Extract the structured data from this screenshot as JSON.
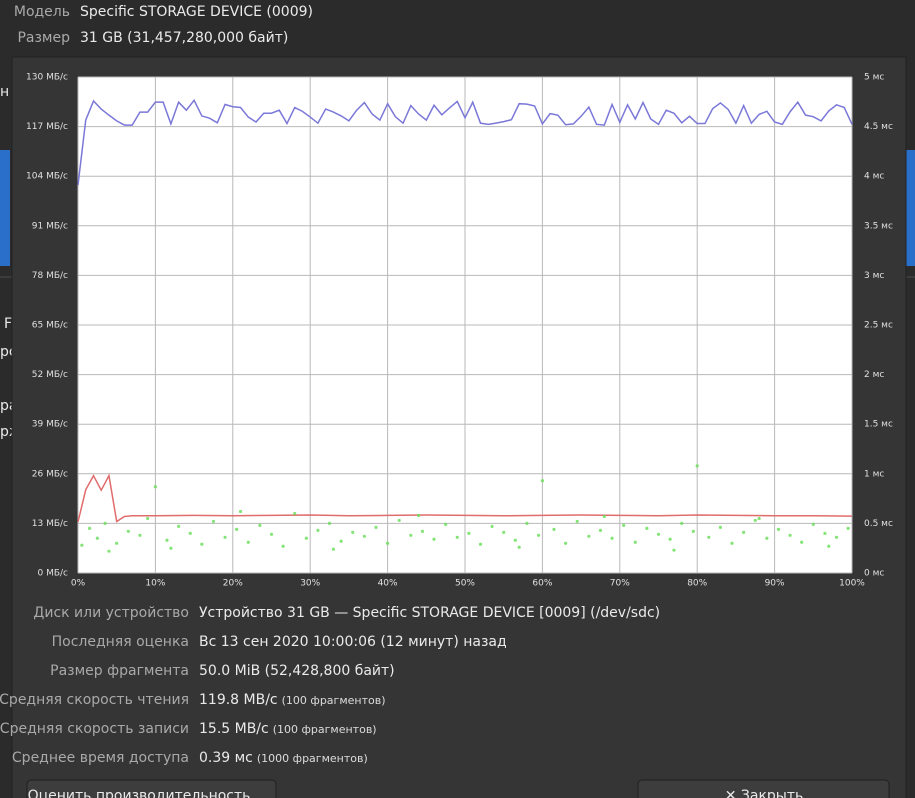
{
  "header": {
    "rows": [
      {
        "label": "Модель",
        "value": "Specific STORAGE DEVICE (0009)"
      },
      {
        "label": "Размер",
        "value": "31 GB (31,457,280,000 байт)"
      }
    ]
  },
  "background_fragments": [
    "н",
    "F",
    "ро",
    "ра",
    "рж"
  ],
  "chart_data": {
    "type": "line",
    "xlim": [
      0,
      100
    ],
    "xticks": [
      {
        "value": 0,
        "label": "0%"
      },
      {
        "value": 10,
        "label": "10%"
      },
      {
        "value": 20,
        "label": "20%"
      },
      {
        "value": 30,
        "label": "30%"
      },
      {
        "value": 40,
        "label": "40%"
      },
      {
        "value": 50,
        "label": "50%"
      },
      {
        "value": 60,
        "label": "60%"
      },
      {
        "value": 70,
        "label": "70%"
      },
      {
        "value": 80,
        "label": "80%"
      },
      {
        "value": 90,
        "label": "90%"
      },
      {
        "value": 100,
        "label": "100%"
      }
    ],
    "ylim": [
      0,
      130
    ],
    "yticks": [
      {
        "value": 0,
        "label": "0 МБ/с"
      },
      {
        "value": 13,
        "label": "13 МБ/с"
      },
      {
        "value": 26,
        "label": "26 МБ/с"
      },
      {
        "value": 39,
        "label": "39 МБ/с"
      },
      {
        "value": 52,
        "label": "52 МБ/с"
      },
      {
        "value": 65,
        "label": "65 МБ/с"
      },
      {
        "value": 78,
        "label": "78 МБ/с"
      },
      {
        "value": 91,
        "label": "91 МБ/с"
      },
      {
        "value": 104,
        "label": "104 МБ/с"
      },
      {
        "value": 117,
        "label": "117 МБ/с"
      },
      {
        "value": 130,
        "label": "130 МБ/с"
      }
    ],
    "y2lim": [
      0,
      5
    ],
    "y2ticks": [
      {
        "value": 0,
        "label": "0 мс"
      },
      {
        "value": 0.5,
        "label": "0.5 мс"
      },
      {
        "value": 1,
        "label": "1 мс"
      },
      {
        "value": 1.5,
        "label": "1.5 мс"
      },
      {
        "value": 2,
        "label": "2 мс"
      },
      {
        "value": 2.5,
        "label": "2.5 мс"
      },
      {
        "value": 3,
        "label": "3 мс"
      },
      {
        "value": 3.5,
        "label": "3.5 мс"
      },
      {
        "value": 4,
        "label": "4 мс"
      },
      {
        "value": 4.5,
        "label": "4.5 мс"
      },
      {
        "value": 5,
        "label": "5 мс"
      }
    ],
    "grid": true,
    "series": [
      {
        "color": "#7b78d8",
        "x": [
          0,
          1,
          2,
          3,
          4,
          5,
          6,
          7,
          8,
          9,
          10,
          11,
          12,
          13,
          14,
          15,
          16,
          17,
          18,
          19,
          20,
          21,
          22,
          23,
          24,
          25,
          26,
          27,
          28,
          29,
          30,
          31,
          32,
          33,
          34,
          35,
          36,
          37,
          38,
          39,
          40,
          41,
          42,
          43,
          44,
          45,
          46,
          47,
          48,
          49,
          50,
          51,
          52,
          53,
          54,
          55,
          56,
          57,
          58,
          59,
          60,
          61,
          62,
          63,
          64,
          65,
          66,
          67,
          68,
          69,
          70,
          71,
          72,
          73,
          74,
          75,
          76,
          77,
          78,
          79,
          80,
          81,
          82,
          83,
          84,
          85,
          86,
          87,
          88,
          89,
          90,
          91,
          92,
          93,
          94,
          95,
          96,
          97,
          98,
          99,
          100
        ],
        "values": [
          101.7,
          118.7,
          123.7,
          121.6,
          120,
          118.5,
          117.4,
          117.4,
          120.8,
          120.8,
          123.4,
          123.4,
          117.7,
          123.4,
          121.3,
          123.9,
          119.8,
          119.2,
          118,
          122.8,
          122.2,
          122,
          119.5,
          118.2,
          120.5,
          120.5,
          121.3,
          117.8,
          122,
          121,
          119.5,
          117.9,
          121.6,
          120.8,
          119.8,
          118.5,
          121.3,
          123.3,
          120.3,
          118.7,
          123,
          119.6,
          117.9,
          122.5,
          120.3,
          118.7,
          122.6,
          120.1,
          121.9,
          123.6,
          119.3,
          123.4,
          117.9,
          117.6,
          117.9,
          118.3,
          118.8,
          123,
          122.9,
          122.4,
          117.7,
          120.4,
          120,
          117.5,
          117.7,
          119.7,
          122.1,
          117.6,
          117.4,
          122.8,
          118.1,
          122.7,
          119,
          123.3,
          119,
          117.6,
          121.3,
          120.5,
          118,
          119.7,
          117.8,
          117.8,
          121.7,
          123.2,
          121.5,
          117.9,
          122.5,
          117.9,
          120.2,
          121,
          118.2,
          117.6,
          120.9,
          123.4,
          120,
          119.6,
          118.5,
          121.1,
          122.7,
          122,
          117.6
        ]
      },
      {
        "color": "#e06c6c",
        "x": [
          0,
          1,
          2,
          3,
          4,
          5,
          6,
          7,
          8,
          9,
          10,
          15,
          20,
          25,
          30,
          35,
          40,
          45,
          50,
          55,
          60,
          65,
          70,
          75,
          80,
          85,
          90,
          95,
          100
        ],
        "values": [
          13.4,
          21.8,
          25.5,
          21.7,
          25.5,
          13.5,
          14.8,
          15,
          15,
          15,
          15,
          15.1,
          15,
          15.1,
          15.2,
          15,
          15.1,
          15.2,
          15.1,
          15,
          15.1,
          15.2,
          15.1,
          15,
          15.2,
          15.1,
          15,
          15,
          14.9
        ]
      },
      {
        "color": "#66dd55",
        "axis": "y2",
        "type": "scatter",
        "x": [
          0.5,
          1.5,
          2.5,
          3.5,
          5,
          6.5,
          8,
          9,
          10,
          11.5,
          13,
          14.5,
          16,
          17.5,
          19,
          20.5,
          22,
          23.5,
          25,
          26.5,
          28,
          29.5,
          31,
          32.5,
          34,
          35.5,
          37,
          38.5,
          40,
          41.5,
          43,
          44.5,
          46,
          47.5,
          49,
          50.5,
          52,
          53.5,
          55,
          56.5,
          58,
          59.5,
          60,
          61.5,
          63,
          64.5,
          66,
          67.5,
          69,
          70.5,
          72,
          73.5,
          75,
          76.5,
          78,
          79.5,
          80,
          81.5,
          83,
          84.5,
          86,
          87.5,
          89,
          90.5,
          92,
          93.5,
          95,
          96.5,
          98,
          99.5,
          4,
          12,
          21,
          33,
          44,
          57,
          68,
          77,
          88,
          97
        ],
        "values": [
          0.28,
          0.45,
          0.35,
          0.5,
          0.3,
          0.42,
          0.38,
          0.55,
          0.87,
          0.33,
          0.47,
          0.4,
          0.29,
          0.52,
          0.36,
          0.44,
          0.31,
          0.48,
          0.39,
          0.27,
          0.6,
          0.35,
          0.43,
          0.5,
          0.32,
          0.41,
          0.37,
          0.46,
          0.3,
          0.53,
          0.38,
          0.42,
          0.34,
          0.49,
          0.36,
          0.4,
          0.29,
          0.47,
          0.41,
          0.33,
          0.5,
          0.38,
          0.93,
          0.44,
          0.3,
          0.52,
          0.37,
          0.43,
          0.35,
          0.48,
          0.31,
          0.45,
          0.39,
          0.34,
          0.5,
          0.42,
          1.08,
          0.36,
          0.46,
          0.3,
          0.41,
          0.53,
          0.35,
          0.44,
          0.38,
          0.31,
          0.49,
          0.4,
          0.36,
          0.45,
          0.22,
          0.25,
          0.62,
          0.24,
          0.58,
          0.26,
          0.57,
          0.23,
          0.55,
          0.27
        ]
      }
    ]
  },
  "info": {
    "rows": [
      {
        "label": "Диск или устройство",
        "value": "Устройство 31 GB — Specific STORAGE DEVICE [0009] (/dev/sdc)"
      },
      {
        "label": "Последняя оценка",
        "value": "Вс 13 сен 2020 10:00:06 (12 минут) назад"
      },
      {
        "label": "Размер фрагмента",
        "value": "50.0 MiB (52,428,800 байт)"
      },
      {
        "label": "Средняя скорость чтения",
        "value": "119.8 MB/с",
        "note": "(100 фрагментов)"
      },
      {
        "label": "Средняя скорость записи",
        "value": "15.5 MB/с",
        "note": "(100 фрагментов)"
      },
      {
        "label": "Среднее время доступа",
        "value": "0.39 мс",
        "note": "(1000 фрагментов)"
      }
    ]
  },
  "buttons": {
    "benchmark": "Оценить производительность…",
    "close": "✕ Закрыть"
  }
}
